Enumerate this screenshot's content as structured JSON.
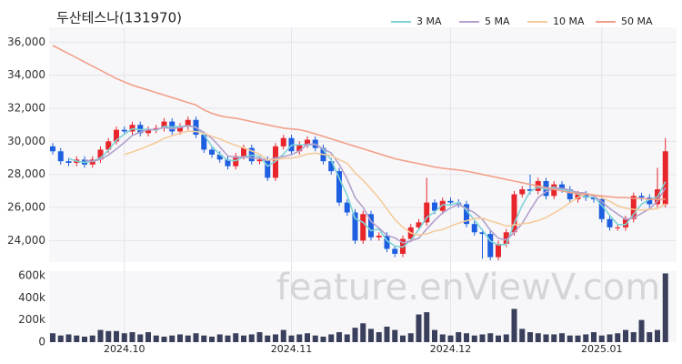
{
  "watermark": "feature.enViewV.com",
  "chart_data": [
    {
      "type": "candlestick",
      "title": "두산테스나(131970)",
      "up_color": "#e8252b",
      "down_color": "#1d5fe0",
      "grid": true,
      "ylim": [
        22700,
        36900
      ],
      "yticks": [
        {
          "value": 24000,
          "label": "24,000"
        },
        {
          "value": 26000,
          "label": "26,000"
        },
        {
          "value": 28000,
          "label": "28,000"
        },
        {
          "value": 30000,
          "label": "30,000"
        },
        {
          "value": 32000,
          "label": "32,000"
        },
        {
          "value": 34000,
          "label": "34,000"
        },
        {
          "value": 36000,
          "label": "36,000"
        }
      ],
      "open": [
        29700,
        29400,
        28800,
        28700,
        28900,
        28600,
        28900,
        29500,
        30000,
        30700,
        30600,
        31000,
        30500,
        30700,
        30800,
        31200,
        30600,
        30900,
        31300,
        30400,
        29500,
        29200,
        28900,
        28500,
        29100,
        29600,
        28800,
        28900,
        27800,
        29700,
        30200,
        29400,
        29800,
        30100,
        29600,
        28800,
        28200,
        26300,
        25700,
        24000,
        25600,
        24200,
        24300,
        23500,
        23200,
        24100,
        24800,
        25100,
        26300,
        25800,
        26400,
        26300,
        26200,
        25000,
        24500,
        24400,
        23000,
        23800,
        24500,
        26800,
        27100,
        27000,
        27600,
        26700,
        27400,
        27100,
        26500,
        26800,
        26600,
        26500,
        25300,
        24800,
        24800,
        25300,
        26700,
        26600,
        26200,
        26200
      ],
      "high": [
        29900,
        29600,
        29000,
        29100,
        29100,
        29100,
        29700,
        30200,
        30900,
        30900,
        31200,
        31200,
        30900,
        31000,
        31400,
        31400,
        31100,
        31500,
        31500,
        30600,
        29700,
        29400,
        29100,
        29300,
        29800,
        29800,
        29100,
        29100,
        29900,
        30400,
        30400,
        30000,
        30300,
        30300,
        29800,
        29000,
        28400,
        26500,
        25900,
        25800,
        25800,
        24500,
        24500,
        23700,
        24300,
        25000,
        25300,
        27800,
        26500,
        26600,
        26600,
        26500,
        26400,
        25200,
        24700,
        24600,
        24000,
        24700,
        27000,
        27300,
        28000,
        27800,
        27800,
        27600,
        27600,
        27300,
        27000,
        27000,
        26800,
        26700,
        25500,
        25000,
        25500,
        26900,
        26900,
        26800,
        28400,
        30200
      ],
      "low": [
        29200,
        28600,
        28500,
        28500,
        28400,
        28400,
        28700,
        29300,
        29800,
        30400,
        30400,
        30300,
        30300,
        30500,
        30600,
        30400,
        30400,
        30700,
        30200,
        29300,
        29000,
        28700,
        28300,
        28300,
        28900,
        28600,
        28600,
        27600,
        27600,
        29500,
        29200,
        29200,
        29600,
        29400,
        28600,
        28000,
        26100,
        25500,
        23800,
        23800,
        24000,
        24000,
        23300,
        23000,
        23000,
        23900,
        24600,
        24900,
        25600,
        25600,
        26100,
        26000,
        24800,
        24300,
        22900,
        22800,
        22800,
        23600,
        24300,
        26600,
        26800,
        26800,
        26500,
        26500,
        26900,
        26300,
        26300,
        26400,
        26300,
        25100,
        24600,
        24600,
        24600,
        25100,
        26400,
        26000,
        26000,
        26000
      ],
      "close": [
        29400,
        28800,
        28700,
        28900,
        28600,
        28900,
        29500,
        30000,
        30700,
        30600,
        31000,
        30500,
        30700,
        30800,
        31200,
        30600,
        30900,
        31300,
        30400,
        29500,
        29200,
        28900,
        28500,
        29100,
        29600,
        28800,
        28900,
        27800,
        29700,
        30200,
        29400,
        29800,
        30100,
        29600,
        28800,
        28200,
        26300,
        25700,
        24000,
        25600,
        24200,
        24300,
        23500,
        23200,
        24100,
        24800,
        25100,
        26300,
        25800,
        26400,
        26300,
        26200,
        25000,
        24500,
        24400,
        23000,
        23800,
        24500,
        26800,
        27100,
        27000,
        27600,
        26700,
        27400,
        27100,
        26500,
        26800,
        26600,
        26500,
        25300,
        24800,
        24800,
        25300,
        26700,
        26600,
        26200,
        27100,
        29400
      ],
      "series": [
        {
          "name": "3 MA",
          "color": "#7fd3d6",
          "values": [
            null,
            null,
            28967,
            28800,
            28733,
            28800,
            29000,
            29467,
            30067,
            30433,
            30767,
            30700,
            30733,
            30667,
            30900,
            30867,
            30900,
            30933,
            30867,
            30400,
            29700,
            29200,
            28867,
            28833,
            29067,
            29167,
            29100,
            28500,
            28800,
            29233,
            29767,
            29800,
            29767,
            29833,
            29500,
            28867,
            27767,
            26733,
            25333,
            25100,
            24600,
            24700,
            24000,
            23667,
            23600,
            24033,
            24667,
            25400,
            25733,
            26167,
            26167,
            26300,
            25833,
            25233,
            24633,
            23967,
            23733,
            23767,
            25033,
            26133,
            26967,
            27233,
            27100,
            27233,
            27067,
            27000,
            26800,
            26633,
            26633,
            26133,
            25533,
            24967,
            24967,
            25600,
            26200,
            26500,
            26633,
            27567
          ]
        },
        {
          "name": "5 MA",
          "color": "#b3a0cc",
          "values": [
            null,
            null,
            null,
            null,
            28880,
            28780,
            28920,
            29180,
            29540,
            29940,
            30360,
            30560,
            30700,
            30720,
            30840,
            30760,
            30840,
            30960,
            30840,
            30540,
            30180,
            29660,
            29120,
            29040,
            29060,
            29000,
            28980,
            28840,
            29000,
            29080,
            29200,
            29420,
            29840,
            29820,
            29540,
            29300,
            28600,
            27720,
            26600,
            26000,
            25160,
            24760,
            24320,
            24160,
            23860,
            23980,
            24140,
            24700,
            25220,
            25680,
            25980,
            26200,
            25940,
            25680,
            25280,
            24620,
            24140,
            24040,
            24500,
            25040,
            25840,
            26600,
            26960,
            27160,
            27160,
            27060,
            26900,
            26880,
            26700,
            26340,
            25940,
            25600,
            25280,
            25380,
            25640,
            25920,
            26380,
            27200
          ]
        },
        {
          "name": "10 MA",
          "color": "#f5cb9c",
          "values": [
            null,
            null,
            null,
            null,
            null,
            null,
            null,
            null,
            null,
            29200,
            29360,
            29530,
            29730,
            29920,
            30180,
            30350,
            30490,
            30620,
            30600,
            30490,
            30310,
            30150,
            29930,
            29760,
            29600,
            29420,
            29230,
            28880,
            28900,
            28970,
            28990,
            29080,
            29240,
            29290,
            29210,
            29150,
            28890,
            28670,
            28100,
            27640,
            27120,
            26570,
            25910,
            25270,
            24800,
            24460,
            24340,
            24400,
            24580,
            24660,
            24870,
            25060,
            25200,
            25330,
            25360,
            25180,
            25050,
            24870,
            24950,
            25010,
            25080,
            25220,
            25390,
            25680,
            25950,
            26300,
            26600,
            26810,
            26780,
            26600,
            26380,
            26100,
            25960,
            25890,
            25840,
            25880,
            25930,
            26220
          ]
        },
        {
          "name": "50 MA",
          "color": "#f2a08a",
          "values": [
            35800,
            35550,
            35300,
            35050,
            34800,
            34550,
            34300,
            34050,
            33800,
            33600,
            33400,
            33250,
            33100,
            32950,
            32800,
            32650,
            32500,
            32350,
            32200,
            31900,
            31700,
            31550,
            31450,
            31400,
            31300,
            31200,
            31100,
            31000,
            30900,
            30800,
            30750,
            30700,
            30600,
            30450,
            30300,
            30150,
            30000,
            29850,
            29700,
            29550,
            29400,
            29250,
            29100,
            28950,
            28850,
            28750,
            28650,
            28550,
            28450,
            28380,
            28320,
            28270,
            28200,
            28100,
            28000,
            27900,
            27800,
            27700,
            27600,
            27500,
            27400,
            27300,
            27200,
            27100,
            27000,
            26900,
            26850,
            26800,
            26750,
            26700,
            26650,
            26600,
            26600,
            26550,
            26550,
            26500,
            26500,
            26500
          ]
        }
      ]
    },
    {
      "type": "bar",
      "color": "#3a3f5c",
      "ylim": [
        0,
        640000
      ],
      "yticks": [
        0,
        {
          "value": 200000,
          "label": "200k"
        },
        {
          "value": 400000,
          "label": "400k"
        },
        {
          "value": 600000,
          "label": "600k"
        }
      ],
      "categories": [
        null,
        null,
        null,
        null,
        null,
        null,
        null,
        null,
        null,
        "2024.10",
        null,
        null,
        null,
        null,
        null,
        null,
        null,
        null,
        null,
        null,
        null,
        null,
        null,
        null,
        null,
        null,
        null,
        null,
        null,
        null,
        "2024.11",
        null,
        null,
        null,
        null,
        null,
        null,
        null,
        null,
        null,
        null,
        null,
        null,
        null,
        null,
        null,
        null,
        null,
        null,
        null,
        "2024.12",
        null,
        null,
        null,
        null,
        null,
        null,
        null,
        null,
        null,
        null,
        null,
        null,
        null,
        null,
        null,
        null,
        null,
        null,
        "2025.01",
        null,
        null,
        null,
        null,
        null,
        null,
        null,
        null
      ],
      "values": [
        80000,
        60000,
        70000,
        60000,
        50000,
        60000,
        110000,
        100000,
        100000,
        80000,
        90000,
        70000,
        90000,
        60000,
        50000,
        60000,
        70000,
        60000,
        80000,
        60000,
        50000,
        70000,
        60000,
        80000,
        60000,
        70000,
        90000,
        60000,
        70000,
        110000,
        60000,
        70000,
        80000,
        60000,
        50000,
        70000,
        90000,
        70000,
        130000,
        170000,
        120000,
        90000,
        140000,
        110000,
        60000,
        80000,
        250000,
        270000,
        110000,
        70000,
        60000,
        90000,
        80000,
        60000,
        70000,
        80000,
        60000,
        70000,
        300000,
        120000,
        90000,
        80000,
        70000,
        70000,
        80000,
        60000,
        60000,
        70000,
        90000,
        60000,
        70000,
        80000,
        110000,
        90000,
        200000,
        90000,
        110000,
        620000
      ]
    }
  ]
}
